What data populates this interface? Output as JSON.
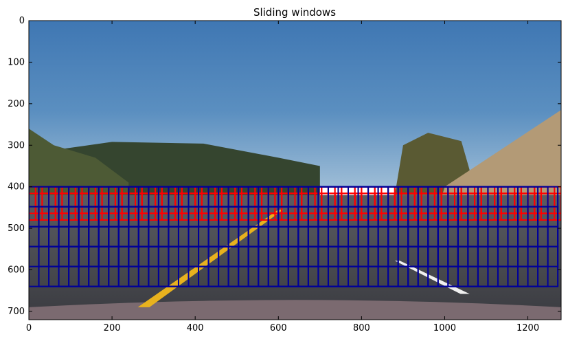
{
  "chart_data": {
    "type": "image",
    "title": "Sliding windows",
    "xlim": [
      0,
      1280
    ],
    "ylim": [
      720,
      0
    ],
    "x_ticks": [
      0,
      200,
      400,
      600,
      800,
      1000,
      1200
    ],
    "y_ticks": [
      0,
      100,
      200,
      300,
      400,
      500,
      600,
      700
    ],
    "grid": false,
    "background_scene": "road with lane lines, hills and blue sky",
    "window_sets": [
      {
        "color": "#ff0000",
        "label": "",
        "window_size": [
          64,
          64
        ],
        "x_start": 0,
        "x_stop": 1280,
        "x_step": 16,
        "y_starts": [
          400,
          416
        ],
        "rows": 2
      },
      {
        "color": "#000099",
        "label": "",
        "window_size": [
          96,
          96
        ],
        "x_start": 0,
        "x_stop": 1280,
        "x_step": 24,
        "y_starts": [
          400,
          448,
          496,
          544
        ],
        "rows": 4
      }
    ]
  }
}
